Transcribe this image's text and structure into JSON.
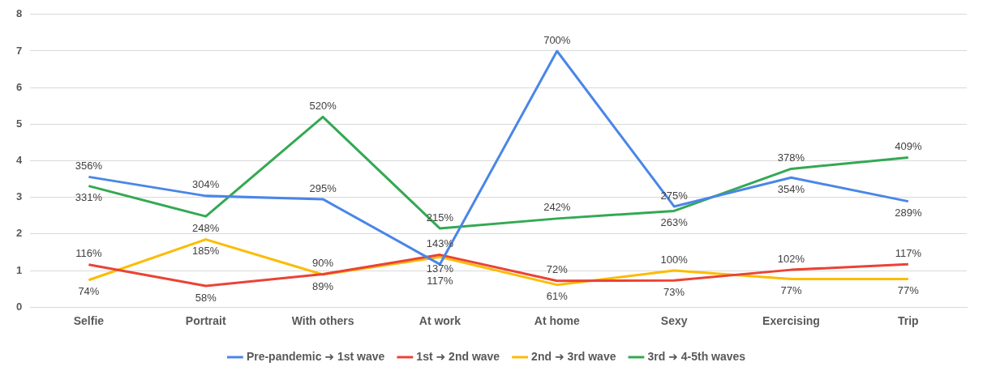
{
  "chart_data": {
    "type": "line",
    "categories": [
      "Selfie",
      "Portrait",
      "With others",
      "At work",
      "At home",
      "Sexy",
      "Exercising",
      "Trip"
    ],
    "series": [
      {
        "name": "Pre-pandemic ➜ 1st wave",
        "color": "#4a86e8",
        "values": [
          3.56,
          3.04,
          2.95,
          1.17,
          7.0,
          2.75,
          3.54,
          2.89
        ],
        "value_labels": [
          "356%",
          "304%",
          "295%",
          "117%",
          "700%",
          "275%",
          "354%",
          "289%"
        ]
      },
      {
        "name": "1st ➜ 2nd wave",
        "color": "#ea4335",
        "values": [
          1.16,
          0.58,
          0.9,
          1.43,
          0.72,
          0.73,
          1.02,
          1.17
        ],
        "value_labels": [
          "116%",
          "58%",
          "90%",
          "143%",
          "72%",
          "73%",
          "102%",
          "117%"
        ]
      },
      {
        "name": "2nd ➜ 3rd wave",
        "color": "#fbbc04",
        "values": [
          0.74,
          1.85,
          0.89,
          1.37,
          0.61,
          1.0,
          0.77,
          0.77
        ],
        "value_labels": [
          "74%",
          "185%",
          "89%",
          "137%",
          "61%",
          "100%",
          "77%",
          "77%"
        ]
      },
      {
        "name": "3rd ➜ 4-5th waves",
        "color": "#34a853",
        "values": [
          3.31,
          2.48,
          5.2,
          2.15,
          2.42,
          2.63,
          3.78,
          4.09
        ],
        "value_labels": [
          "331%",
          "248%",
          "520%",
          "215%",
          "242%",
          "263%",
          "378%",
          "409%"
        ]
      }
    ],
    "ylim": [
      0,
      8
    ],
    "yticks": [
      0,
      1,
      2,
      3,
      4,
      5,
      6,
      7,
      8
    ],
    "grid": "y",
    "legend": "bottom",
    "marker": "none",
    "line_style": "solid"
  }
}
